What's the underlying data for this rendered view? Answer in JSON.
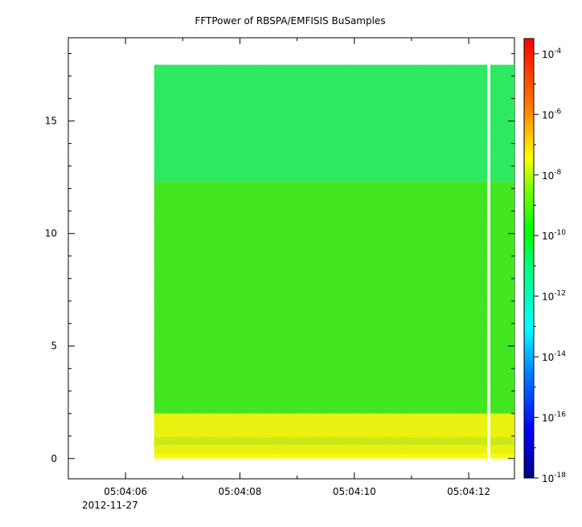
{
  "chart_data": {
    "type": "heatmap",
    "title": "FFTPower of RBSPA/EMFISIS  BuSamples",
    "xlabel": "",
    "ylabel": "",
    "x_axis": {
      "kind": "time",
      "ticks": [
        "05:04:06",
        "05:04:08",
        "05:04:10",
        "05:04:12"
      ],
      "date_label": "2012-11-27",
      "range": [
        "05:04:05.0",
        "05:04:12.8"
      ]
    },
    "y_axis": {
      "ticks": [
        "0",
        "5",
        "10",
        "15"
      ],
      "range": [
        -0.9,
        18.7
      ]
    },
    "colorbar": {
      "scale": "log",
      "range": [
        "1e-18",
        "1e-3.5"
      ],
      "tick_base": "10",
      "tick_exponents": [
        "-4",
        "-6",
        "-8",
        "-10",
        "-12",
        "-14",
        "-16",
        "-18"
      ]
    },
    "data_extent": {
      "time_start": "05:04:06.5",
      "time_end": "05:04:12.8",
      "gap_time": "05:04:12.35",
      "freq_min": 0.0,
      "freq_max": 17.5
    },
    "bands": [
      {
        "freq_range": [
          0.0,
          2.0
        ],
        "level": "1e-9",
        "color": "#e6f000"
      },
      {
        "freq_range": [
          2.0,
          12.3
        ],
        "level": "1e-10",
        "color": "#33e41a"
      },
      {
        "freq_range": [
          12.3,
          17.5
        ],
        "level": "1e-11",
        "color": "#1ee860"
      }
    ]
  }
}
